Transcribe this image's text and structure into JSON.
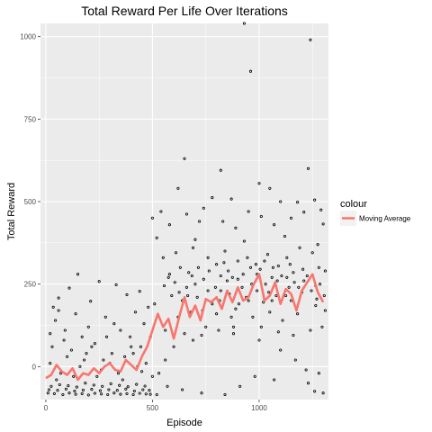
{
  "chart_data": {
    "type": "scatter",
    "title": "Total Reward Per Life Over Iterations",
    "xlabel": "Episode",
    "ylabel": "Total Reward",
    "xlim": [
      -25,
      1325
    ],
    "ylim": [
      -100,
      1040
    ],
    "x_ticks": [
      0,
      500,
      1000
    ],
    "y_ticks": [
      0,
      250,
      500,
      750,
      1000
    ],
    "grid": true,
    "legend_position": "right",
    "legend_title": "colour",
    "colors": {
      "panel": "#ebebeb",
      "grid_major": "#ffffff",
      "points": "#000000",
      "moving_average": "#f8766d"
    },
    "series": [
      {
        "name": "Moving Average",
        "type": "line",
        "x": [
          0,
          25,
          50,
          75,
          100,
          125,
          150,
          175,
          200,
          225,
          250,
          275,
          300,
          325,
          350,
          375,
          400,
          425,
          450,
          475,
          500,
          525,
          550,
          575,
          600,
          625,
          650,
          675,
          700,
          725,
          750,
          775,
          800,
          825,
          850,
          875,
          900,
          925,
          950,
          975,
          1000,
          1025,
          1050,
          1075,
          1100,
          1125,
          1150,
          1175,
          1200,
          1225,
          1250,
          1275,
          1300
        ],
        "y": [
          -35,
          -25,
          5,
          -15,
          -25,
          -5,
          -40,
          -20,
          -25,
          -5,
          -20,
          0,
          10,
          -10,
          -15,
          20,
          5,
          -10,
          30,
          60,
          110,
          160,
          120,
          145,
          85,
          150,
          210,
          150,
          185,
          140,
          205,
          195,
          210,
          175,
          230,
          195,
          240,
          200,
          210,
          250,
          280,
          200,
          215,
          255,
          190,
          235,
          220,
          170,
          230,
          255,
          280,
          225,
          195
        ]
      },
      {
        "type": "scatter",
        "points": [
          [
            930,
            1040
          ],
          [
            960,
            895
          ],
          [
            1240,
            990
          ],
          [
            650,
            630
          ],
          [
            820,
            595
          ],
          [
            1230,
            600
          ],
          [
            1000,
            555
          ],
          [
            1050,
            540
          ],
          [
            620,
            540
          ],
          [
            1260,
            505
          ],
          [
            780,
            512
          ],
          [
            870,
            508
          ],
          [
            1100,
            500
          ],
          [
            1180,
            498
          ],
          [
            540,
            470
          ],
          [
            660,
            462
          ],
          [
            740,
            480
          ],
          [
            1290,
            475
          ],
          [
            950,
            470
          ],
          [
            1300,
            432
          ],
          [
            500,
            450
          ],
          [
            580,
            430
          ],
          [
            720,
            440
          ],
          [
            1010,
            455
          ],
          [
            1150,
            450
          ],
          [
            1210,
            468
          ],
          [
            830,
            440
          ],
          [
            890,
            420
          ],
          [
            1070,
            430
          ],
          [
            150,
            280
          ],
          [
            250,
            258
          ],
          [
            110,
            238
          ],
          [
            330,
            248
          ],
          [
            380,
            218
          ],
          [
            60,
            208
          ],
          [
            440,
            228
          ],
          [
            210,
            198
          ],
          [
            520,
            390
          ],
          [
            700,
            385
          ],
          [
            930,
            380
          ],
          [
            1120,
            395
          ],
          [
            1275,
            370
          ],
          [
            610,
            345
          ],
          [
            690,
            360
          ],
          [
            840,
            350
          ],
          [
            1040,
            340
          ],
          [
            1190,
            360
          ],
          [
            550,
            330
          ],
          [
            760,
            330
          ],
          [
            900,
            320
          ],
          [
            1130,
            330
          ],
          [
            1250,
            345
          ],
          [
            630,
            300
          ],
          [
            800,
            310
          ],
          [
            960,
            300
          ],
          [
            1090,
            305
          ],
          [
            1280,
            300
          ],
          [
            1310,
            290
          ],
          [
            580,
            280
          ],
          [
            670,
            285
          ],
          [
            820,
            275
          ],
          [
            990,
            280
          ],
          [
            1160,
            285
          ],
          [
            60,
            170
          ],
          [
            140,
            160
          ],
          [
            280,
            150
          ],
          [
            420,
            165
          ],
          [
            480,
            180
          ],
          [
            90,
            110
          ],
          [
            200,
            120
          ],
          [
            350,
            110
          ],
          [
            460,
            130
          ],
          [
            30,
            60
          ],
          [
            120,
            50
          ],
          [
            230,
            70
          ],
          [
            310,
            40
          ],
          [
            400,
            60
          ],
          [
            490,
            90
          ],
          [
            20,
            10
          ],
          [
            70,
            -20
          ],
          [
            180,
            20
          ],
          [
            260,
            -10
          ],
          [
            370,
            30
          ],
          [
            450,
            -15
          ],
          [
            1030,
            250
          ],
          [
            950,
            200
          ],
          [
            870,
            150
          ],
          [
            750,
            120
          ],
          [
            690,
            80
          ],
          [
            600,
            60
          ],
          [
            560,
            20
          ],
          [
            530,
            -20
          ],
          [
            880,
            100
          ],
          [
            1000,
            80
          ],
          [
            1100,
            50
          ],
          [
            1170,
            20
          ],
          [
            1220,
            -10
          ],
          [
            1280,
            -20
          ],
          [
            1230,
            -50
          ],
          [
            1300,
            -80
          ],
          [
            1260,
            -75
          ],
          [
            1070,
            -40
          ],
          [
            980,
            -30
          ],
          [
            910,
            -60
          ],
          [
            840,
            -85
          ],
          [
            730,
            -80
          ],
          [
            640,
            -70
          ],
          [
            570,
            -60
          ],
          [
            520,
            -85
          ],
          [
            10,
            -80
          ],
          [
            40,
            -82
          ],
          [
            80,
            -85
          ],
          [
            110,
            -80
          ],
          [
            140,
            -84
          ],
          [
            170,
            -82
          ],
          [
            200,
            -86
          ],
          [
            230,
            -81
          ],
          [
            260,
            -83
          ],
          [
            290,
            -85
          ],
          [
            320,
            -80
          ],
          [
            350,
            -84
          ],
          [
            380,
            -82
          ],
          [
            410,
            -85
          ],
          [
            440,
            -81
          ],
          [
            470,
            -83
          ],
          [
            490,
            -84
          ],
          [
            15,
            -70
          ],
          [
            55,
            -72
          ],
          [
            95,
            -68
          ],
          [
            135,
            -74
          ],
          [
            175,
            -71
          ],
          [
            215,
            -69
          ],
          [
            255,
            -73
          ],
          [
            295,
            -70
          ],
          [
            335,
            -72
          ],
          [
            375,
            -68
          ],
          [
            415,
            -74
          ],
          [
            455,
            -70
          ],
          [
            485,
            -72
          ],
          [
            25,
            -60
          ],
          [
            65,
            -55
          ],
          [
            105,
            -58
          ],
          [
            145,
            -62
          ],
          [
            185,
            -50
          ],
          [
            225,
            -56
          ],
          [
            265,
            -60
          ],
          [
            305,
            -52
          ],
          [
            345,
            -57
          ],
          [
            385,
            -61
          ],
          [
            425,
            -54
          ],
          [
            465,
            -59
          ],
          [
            700,
            250
          ],
          [
            760,
            230
          ],
          [
            850,
            260
          ],
          [
            920,
            240
          ],
          [
            1060,
            270
          ],
          [
            1140,
            240
          ],
          [
            1200,
            225
          ],
          [
            640,
            200
          ],
          [
            710,
            210
          ],
          [
            780,
            190
          ],
          [
            860,
            220
          ],
          [
            940,
            210
          ],
          [
            1020,
            195
          ],
          [
            1080,
            215
          ],
          [
            1150,
            200
          ],
          [
            1270,
            205
          ],
          [
            620,
            150
          ],
          [
            680,
            165
          ],
          [
            800,
            160
          ],
          [
            890,
            175
          ],
          [
            970,
            150
          ],
          [
            1050,
            165
          ],
          [
            1110,
            140
          ],
          [
            1180,
            160
          ],
          [
            1310,
            170
          ],
          [
            560,
            110
          ],
          [
            650,
            100
          ],
          [
            730,
            95
          ],
          [
            810,
            110
          ],
          [
            880,
            120
          ],
          [
            1010,
            120
          ],
          [
            1090,
            105
          ],
          [
            1160,
            95
          ],
          [
            1240,
            110
          ],
          [
            1295,
            120
          ],
          [
            510,
            190
          ],
          [
            590,
            215
          ],
          [
            660,
            240
          ],
          [
            740,
            265
          ],
          [
            820,
            230
          ],
          [
            900,
            265
          ],
          [
            990,
            230
          ],
          [
            1060,
            200
          ],
          [
            1130,
            270
          ],
          [
            1210,
            260
          ],
          [
            1265,
            245
          ],
          [
            100,
            30
          ],
          [
            160,
            0
          ],
          [
            240,
            -30
          ],
          [
            300,
            10
          ],
          [
            360,
            -40
          ],
          [
            430,
            0
          ],
          [
            500,
            -30
          ],
          [
            130,
            -30
          ],
          [
            190,
            40
          ],
          [
            270,
            20
          ],
          [
            340,
            -20
          ],
          [
            410,
            40
          ],
          [
            470,
            10
          ],
          [
            50,
            -40
          ],
          [
            20,
            100
          ],
          [
            35,
            180
          ],
          [
            45,
            140
          ],
          [
            85,
            80
          ],
          [
            170,
            90
          ],
          [
            215,
            60
          ],
          [
            285,
            90
          ],
          [
            320,
            130
          ],
          [
            395,
            90
          ],
          [
            445,
            60
          ],
          [
            555,
            245
          ],
          [
            575,
            270
          ],
          [
            605,
            255
          ],
          [
            625,
            225
          ],
          [
            665,
            215
          ],
          [
            685,
            275
          ],
          [
            715,
            300
          ],
          [
            735,
            170
          ],
          [
            765,
            290
          ],
          [
            795,
            240
          ],
          [
            815,
            200
          ],
          [
            835,
            315
          ],
          [
            855,
            290
          ],
          [
            875,
            270
          ],
          [
            905,
            190
          ],
          [
            925,
            280
          ],
          [
            945,
            330
          ],
          [
            965,
            250
          ],
          [
            985,
            310
          ],
          [
            1005,
            295
          ],
          [
            1025,
            320
          ],
          [
            1045,
            225
          ],
          [
            1065,
            300
          ],
          [
            1085,
            260
          ],
          [
            1105,
            275
          ],
          [
            1125,
            215
          ],
          [
            1145,
            310
          ],
          [
            1165,
            255
          ],
          [
            1185,
            240
          ],
          [
            1205,
            295
          ],
          [
            1225,
            275
          ],
          [
            1245,
            230
          ],
          [
            1265,
            185
          ],
          [
            1285,
            250
          ],
          [
            1305,
            215
          ]
        ]
      }
    ]
  }
}
